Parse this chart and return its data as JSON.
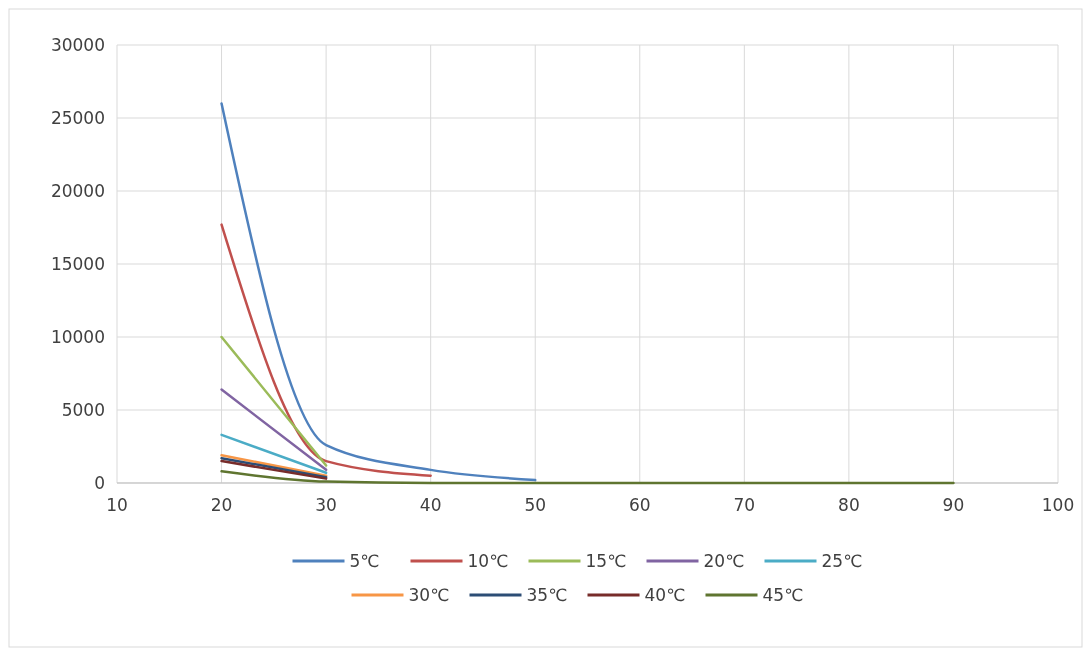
{
  "chart_data": {
    "type": "line",
    "x": [
      20,
      30,
      40,
      50,
      60,
      70,
      80,
      90
    ],
    "series": [
      {
        "name": "5℃",
        "color": "#4f81bd",
        "values": [
          26000,
          2600,
          900,
          200,
          null,
          null,
          null,
          null
        ]
      },
      {
        "name": "10℃",
        "color": "#c0504d",
        "values": [
          17700,
          1500,
          500,
          null,
          null,
          null,
          null,
          null
        ]
      },
      {
        "name": "15℃",
        "color": "#9bbb59",
        "values": [
          10000,
          1200,
          null,
          null,
          null,
          null,
          null,
          null
        ]
      },
      {
        "name": "20℃",
        "color": "#8064a2",
        "values": [
          6400,
          900,
          null,
          null,
          null,
          null,
          null,
          null
        ]
      },
      {
        "name": "25℃",
        "color": "#4bacc6",
        "values": [
          3300,
          700,
          null,
          null,
          null,
          null,
          null,
          null
        ]
      },
      {
        "name": "30℃",
        "color": "#f79646",
        "values": [
          1900,
          500,
          null,
          null,
          null,
          null,
          null,
          null
        ]
      },
      {
        "name": "35℃",
        "color": "#2c4d75",
        "values": [
          1700,
          400,
          null,
          null,
          null,
          null,
          null,
          null
        ]
      },
      {
        "name": "40℃",
        "color": "#772c2a",
        "values": [
          1500,
          300,
          null,
          null,
          null,
          null,
          null,
          null
        ]
      },
      {
        "name": "45℃",
        "color": "#5f7530",
        "values": [
          800,
          100,
          0,
          0,
          0,
          0,
          0,
          0
        ]
      }
    ],
    "xlim": [
      10,
      100
    ],
    "xticks": [
      10,
      20,
      30,
      40,
      50,
      60,
      70,
      80,
      90,
      100
    ],
    "ylim": [
      0,
      30000
    ],
    "yticks": [
      0,
      5000,
      10000,
      15000,
      20000,
      25000,
      30000
    ],
    "grid": true,
    "legend": "bottom",
    "marker": "none",
    "line_style": "solid"
  }
}
